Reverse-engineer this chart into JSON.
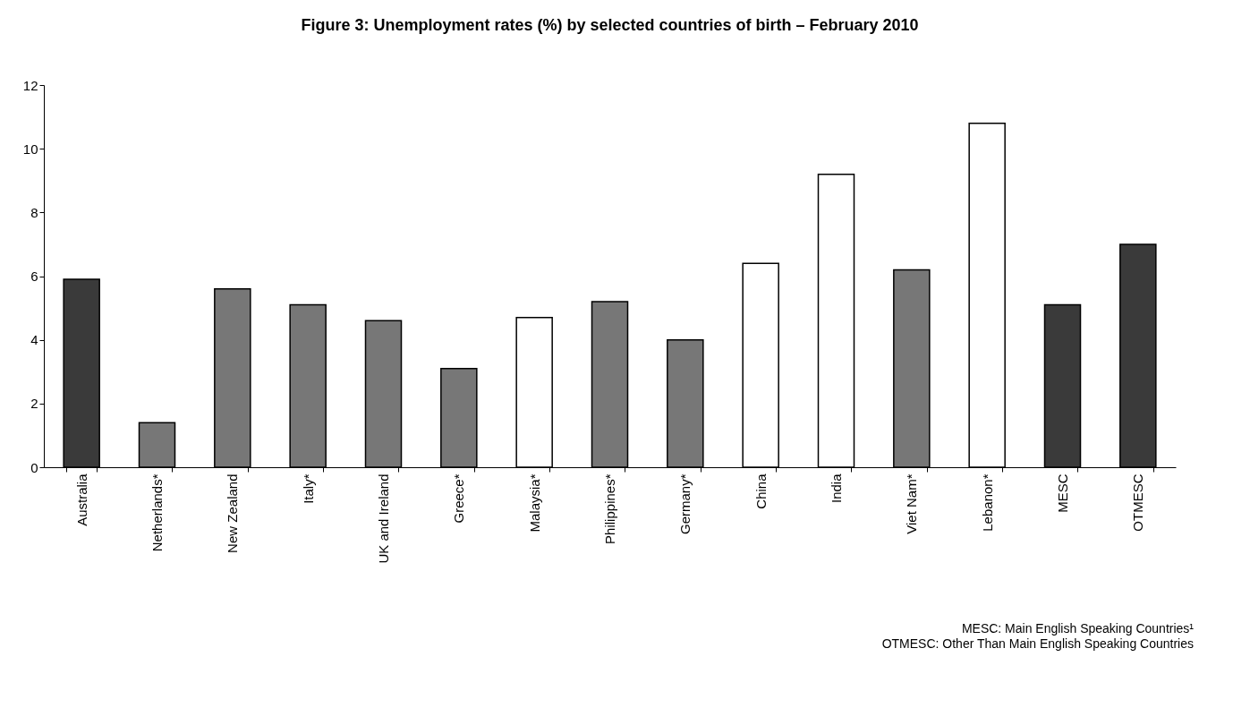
{
  "chart_data": {
    "type": "bar",
    "title": "Figure 3: Unemployment rates (%) by selected countries of birth – February 2010",
    "categories": [
      "Australia",
      "Netherlands*",
      "New Zealand",
      "Italy*",
      "UK and Ireland",
      "Greece*",
      "Malaysia*",
      "Philippines*",
      "Germany*",
      "China",
      "India",
      "Viet Nam*",
      "Lebanon*",
      "MESC",
      "OTMESC"
    ],
    "values": [
      5.9,
      1.4,
      5.6,
      5.1,
      4.6,
      3.1,
      4.7,
      5.2,
      4.0,
      6.4,
      9.2,
      6.2,
      10.8,
      5.1,
      7.0
    ],
    "colors": [
      "#3a3a3a",
      "#777777",
      "#777777",
      "#777777",
      "#777777",
      "#777777",
      "#ffffff",
      "#777777",
      "#777777",
      "#ffffff",
      "#ffffff",
      "#777777",
      "#ffffff",
      "#3a3a3a",
      "#3a3a3a"
    ],
    "ylim": [
      0,
      12
    ],
    "yticks": [
      0,
      2,
      4,
      6,
      8,
      10,
      12
    ],
    "grid": false,
    "annotations": [
      "MESC: Main English Speaking Countries¹",
      "OTMESC: Other Than Main English Speaking Countries"
    ]
  }
}
